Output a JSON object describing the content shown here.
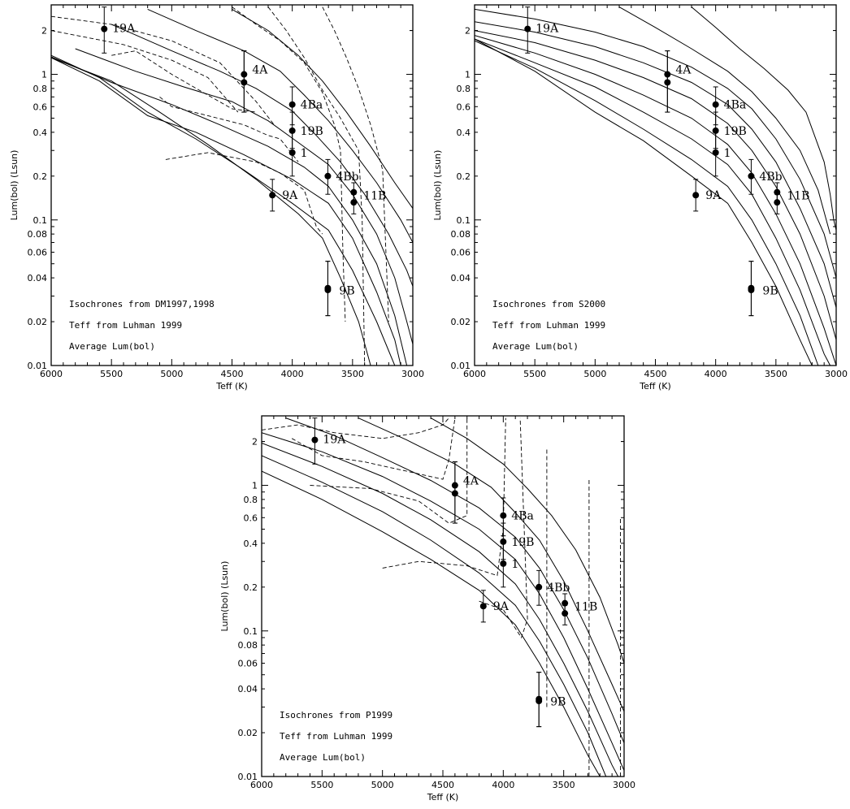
{
  "chart_data": [
    {
      "type": "scatter",
      "panel": "top-left",
      "xlabel": "Teff (K)",
      "ylabel": "Lum(bol) (Lsun)",
      "xlim": [
        6000,
        3000
      ],
      "ylim": [
        0.01,
        3.0
      ],
      "yscale": "log",
      "xticks": [
        6000,
        5500,
        5000,
        4500,
        4000,
        3500,
        3000
      ],
      "yticks": [
        0.01,
        0.02,
        0.04,
        0.06,
        0.08,
        0.1,
        0.2,
        0.4,
        0.6,
        0.8,
        1,
        2
      ],
      "ytick_labels": [
        "0.01",
        "0.02",
        "0.04",
        "0.06",
        "0.08",
        "0.1",
        "0.2",
        "0.4",
        "0.6",
        "0.8",
        "1",
        "2"
      ],
      "annotations": [
        "Isochrones from DM1997,1998",
        "Teff from Luhman 1999",
        "Average Lum(bol)"
      ],
      "stars": [
        {
          "label": "19A",
          "teff": 5560,
          "lum": 2.05,
          "lo": 1.4,
          "hi": 2.9
        },
        {
          "label": "4A",
          "teff": 4400,
          "lum": 1.0,
          "lo": 0.55,
          "hi": 1.45
        },
        {
          "label": "4A",
          "teff": 4400,
          "lum": 0.88,
          "lo": 0.55,
          "hi": 1.45
        },
        {
          "label": "4Ba",
          "teff": 4000,
          "lum": 0.62,
          "lo": 0.45,
          "hi": 0.82
        },
        {
          "label": "19B",
          "teff": 4000,
          "lum": 0.41,
          "lo": 0.31,
          "hi": 0.55
        },
        {
          "label": "1",
          "teff": 4000,
          "lum": 0.29,
          "lo": 0.2,
          "hi": 0.4
        },
        {
          "label": "4Bb",
          "teff": 3705,
          "lum": 0.2,
          "lo": 0.15,
          "hi": 0.26
        },
        {
          "label": "11B",
          "teff": 3490,
          "lum": 0.155,
          "lo": 0.13,
          "hi": 0.18
        },
        {
          "label": "11B",
          "teff": 3490,
          "lum": 0.132,
          "lo": 0.11,
          "hi": 0.15
        },
        {
          "label": "9A",
          "teff": 4165,
          "lum": 0.148,
          "lo": 0.115,
          "hi": 0.19
        },
        {
          "label": "9B",
          "teff": 3705,
          "lum": 0.034,
          "lo": 0.022,
          "hi": 0.052
        },
        {
          "label": "9B",
          "teff": 3705,
          "lum": 0.033,
          "lo": 0.022,
          "hi": 0.052
        }
      ]
    },
    {
      "type": "scatter",
      "panel": "top-right",
      "xlabel": "Teff (K)",
      "ylabel": "Lum(bol) (Lsun)",
      "xlim": [
        6000,
        3000
      ],
      "ylim": [
        0.01,
        3.0
      ],
      "yscale": "log",
      "xticks": [
        6000,
        5500,
        5000,
        4500,
        4000,
        3500,
        3000
      ],
      "yticks": [
        0.01,
        0.02,
        0.04,
        0.06,
        0.08,
        0.1,
        0.2,
        0.4,
        0.6,
        0.8,
        1,
        2
      ],
      "ytick_labels": [
        "0.01",
        "0.02",
        "0.04",
        "0.06",
        "0.08",
        "0.1",
        "0.2",
        "0.4",
        "0.6",
        "0.8",
        "1",
        "2"
      ],
      "annotations": [
        "Isochrones from S2000",
        "Teff from Luhman 1999",
        "Average Lum(bol)"
      ],
      "stars": [
        {
          "label": "19A",
          "teff": 5560,
          "lum": 2.05,
          "lo": 1.4,
          "hi": 2.9
        },
        {
          "label": "4A",
          "teff": 4400,
          "lum": 1.0,
          "lo": 0.55,
          "hi": 1.45
        },
        {
          "label": "4A",
          "teff": 4400,
          "lum": 0.88,
          "lo": 0.55,
          "hi": 1.45
        },
        {
          "label": "4Ba",
          "teff": 4000,
          "lum": 0.62,
          "lo": 0.45,
          "hi": 0.82
        },
        {
          "label": "19B",
          "teff": 4000,
          "lum": 0.41,
          "lo": 0.31,
          "hi": 0.55
        },
        {
          "label": "1",
          "teff": 4000,
          "lum": 0.29,
          "lo": 0.2,
          "hi": 0.4
        },
        {
          "label": "4Bb",
          "teff": 3705,
          "lum": 0.2,
          "lo": 0.15,
          "hi": 0.26
        },
        {
          "label": "11B",
          "teff": 3490,
          "lum": 0.155,
          "lo": 0.13,
          "hi": 0.18
        },
        {
          "label": "11B",
          "teff": 3490,
          "lum": 0.132,
          "lo": 0.11,
          "hi": 0.15
        },
        {
          "label": "9A",
          "teff": 4165,
          "lum": 0.148,
          "lo": 0.115,
          "hi": 0.19
        },
        {
          "label": "9B",
          "teff": 3705,
          "lum": 0.034,
          "lo": 0.022,
          "hi": 0.052
        },
        {
          "label": "9B",
          "teff": 3705,
          "lum": 0.033,
          "lo": 0.022,
          "hi": 0.052
        }
      ]
    },
    {
      "type": "scatter",
      "panel": "bottom",
      "xlabel": "Teff (K)",
      "ylabel": "Lum(bol) (Lsun)",
      "xlim": [
        6000,
        3000
      ],
      "ylim": [
        0.01,
        3.0
      ],
      "yscale": "log",
      "xticks": [
        6000,
        5500,
        5000,
        4500,
        4000,
        3500,
        3000
      ],
      "yticks": [
        0.01,
        0.02,
        0.04,
        0.06,
        0.08,
        0.1,
        0.2,
        0.4,
        0.6,
        0.8,
        1,
        2
      ],
      "ytick_labels": [
        "0.01",
        "0.02",
        "0.04",
        "0.06",
        "0.08",
        "0.1",
        "0.2",
        "0.4",
        "0.6",
        "0.8",
        "1",
        "2"
      ],
      "annotations": [
        "Isochrones from P1999",
        "Teff from Luhman 1999",
        "Average Lum(bol)"
      ],
      "stars": [
        {
          "label": "19A",
          "teff": 5560,
          "lum": 2.05,
          "lo": 1.4,
          "hi": 2.9
        },
        {
          "label": "4A",
          "teff": 4400,
          "lum": 1.0,
          "lo": 0.55,
          "hi": 1.45
        },
        {
          "label": "4A",
          "teff": 4400,
          "lum": 0.88,
          "lo": 0.55,
          "hi": 1.45
        },
        {
          "label": "4Ba",
          "teff": 4000,
          "lum": 0.62,
          "lo": 0.45,
          "hi": 0.82
        },
        {
          "label": "19B",
          "teff": 4000,
          "lum": 0.41,
          "lo": 0.31,
          "hi": 0.55
        },
        {
          "label": "1",
          "teff": 4000,
          "lum": 0.29,
          "lo": 0.2,
          "hi": 0.4
        },
        {
          "label": "4Bb",
          "teff": 3705,
          "lum": 0.2,
          "lo": 0.15,
          "hi": 0.26
        },
        {
          "label": "11B",
          "teff": 3490,
          "lum": 0.155,
          "lo": 0.13,
          "hi": 0.18
        },
        {
          "label": "11B",
          "teff": 3490,
          "lum": 0.132,
          "lo": 0.11,
          "hi": 0.15
        },
        {
          "label": "9A",
          "teff": 4165,
          "lum": 0.148,
          "lo": 0.115,
          "hi": 0.19
        },
        {
          "label": "9B",
          "teff": 3705,
          "lum": 0.034,
          "lo": 0.022,
          "hi": 0.052
        },
        {
          "label": "9B",
          "teff": 3705,
          "lum": 0.033,
          "lo": 0.022,
          "hi": 0.052
        }
      ]
    }
  ]
}
